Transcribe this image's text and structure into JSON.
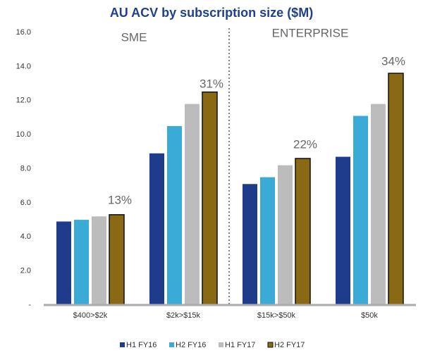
{
  "chart_data": {
    "type": "bar",
    "title": "AU ACV by subscription size ($M)",
    "categories": [
      "$400>$2k",
      "$2k>$15k",
      "$15k>$50k",
      "$50k"
    ],
    "series": [
      {
        "name": "H1 FY16",
        "color": "#1f3c8c",
        "values": [
          4.9,
          8.9,
          7.1,
          8.7
        ]
      },
      {
        "name": "H2 FY16",
        "color": "#3aabd6",
        "values": [
          5.0,
          10.5,
          7.5,
          11.1
        ]
      },
      {
        "name": "H1 FY17",
        "color": "#bcbcbc",
        "values": [
          5.2,
          11.8,
          8.2,
          11.8
        ]
      },
      {
        "name": "H2 FY17",
        "color": "#8a6914",
        "values": [
          5.3,
          12.5,
          8.6,
          13.6
        ]
      }
    ],
    "ylim": [
      0,
      16
    ],
    "yticks": [
      {
        "value": 0,
        "label": "-"
      },
      {
        "value": 2,
        "label": "2.0"
      },
      {
        "value": 4,
        "label": "4.0"
      },
      {
        "value": 6,
        "label": "6.0"
      },
      {
        "value": 8,
        "label": "8.0"
      },
      {
        "value": 10,
        "label": "10.0"
      },
      {
        "value": 12,
        "label": "12.0"
      },
      {
        "value": 14,
        "label": "14.0"
      },
      {
        "value": 16,
        "label": "16.0"
      }
    ],
    "annotations": [
      "SME",
      "ENTERPRISE",
      "13%",
      "31%",
      "22%",
      "34%"
    ],
    "legend": "bottom"
  }
}
